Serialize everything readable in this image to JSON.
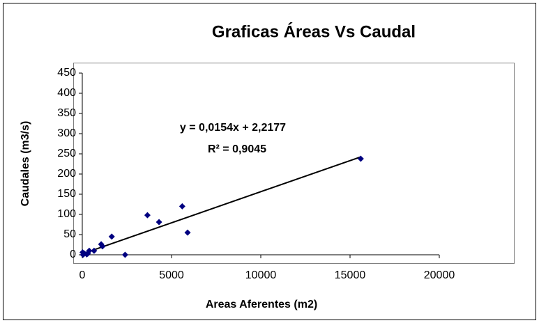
{
  "chart_data": {
    "type": "scatter",
    "title": "Graficas Áreas Vs Caudal",
    "xlabel": "Areas Aferentes (m2)",
    "ylabel": "Caudales (m3/s)",
    "x": [
      15600,
      5600,
      3650,
      4300,
      5900,
      1650,
      1060,
      1130,
      2400,
      660,
      390,
      310,
      120,
      40,
      20,
      250
    ],
    "y": [
      238,
      120,
      98,
      81,
      55,
      45,
      26,
      21,
      0,
      10,
      10,
      3,
      3,
      0,
      6,
      1
    ],
    "color": "#000080",
    "xlim": [
      0,
      20000
    ],
    "xticks": [
      0,
      5000,
      10000,
      15000,
      20000
    ],
    "ylim": [
      0,
      450
    ],
    "yticks": [
      0,
      50,
      100,
      150,
      200,
      250,
      300,
      350,
      400,
      450
    ],
    "trendline": {
      "slope": 0.0154,
      "intercept": 2.2177,
      "equation": "y = 0,0154x + 2,2177",
      "r2": "R² = 0,9045",
      "color": "#000000"
    }
  }
}
